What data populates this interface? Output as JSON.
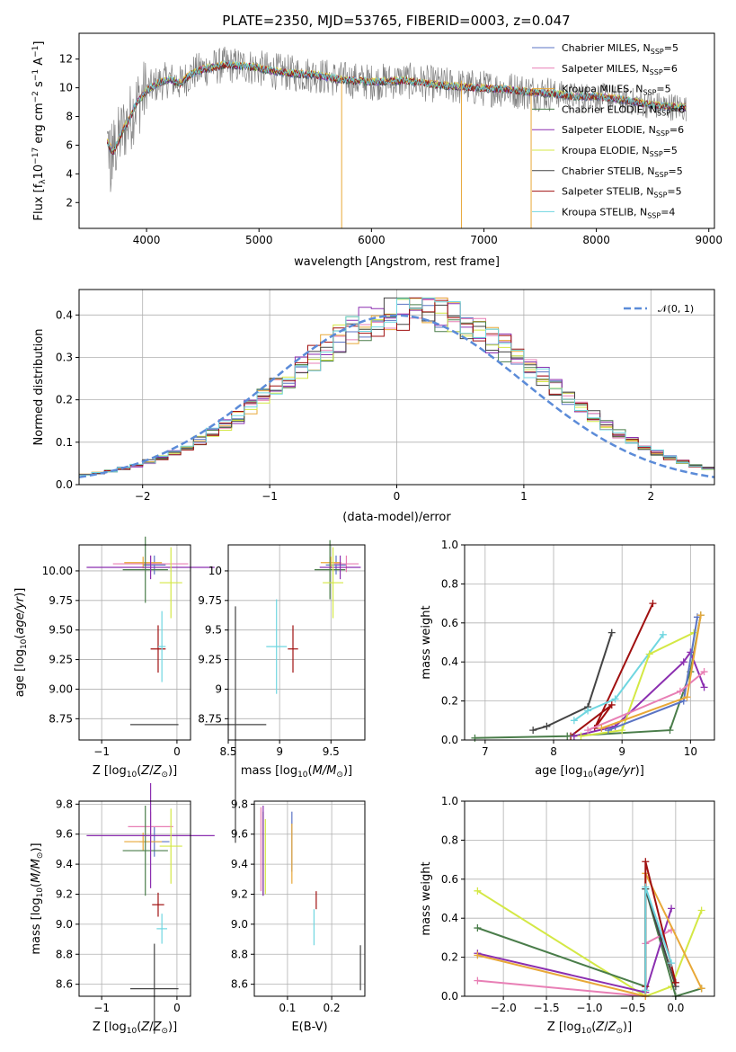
{
  "title": "PLATE=2350, MJD=53765, FIBERID=0003, z=0.047",
  "colors": {
    "Chabrier MILES": "#5b74c4",
    "Salpeter MILES": "#e87fb5",
    "Kroupa MILES": "#e8a838",
    "Chabrier ELODIE": "#4a7d4a",
    "Salpeter ELODIE": "#8b2fb0",
    "Kroupa ELODIE": "#d4e845",
    "Chabrier STELIB": "#444444",
    "Salpeter STELIB": "#a01010",
    "Kroupa STELIB": "#6fd6e0",
    "data": "#808080",
    "normal": "#5b8bd8"
  },
  "chart_data": [
    {
      "id": "spectrum",
      "type": "line",
      "xlabel": "wavelength [Angstrom, rest frame]",
      "ylabel": "Flux [f_λ 10^-17 erg cm^-2 s^-1 A^-1]",
      "xlim": [
        3400,
        9050
      ],
      "ylim": [
        0.2,
        13.8
      ],
      "xticks": [
        4000,
        5000,
        6000,
        7000,
        8000,
        9000
      ],
      "yticks": [
        2,
        4,
        6,
        8,
        10,
        12
      ],
      "grid": false,
      "legend_position": "right",
      "legend": [
        {
          "name": "Chabrier MILES",
          "nssp": "5"
        },
        {
          "name": "Salpeter MILES",
          "nssp": "6"
        },
        {
          "name": "Kroupa MILES",
          "nssp": "5"
        },
        {
          "name": "Chabrier ELODIE",
          "nssp": "6"
        },
        {
          "name": "Salpeter ELODIE",
          "nssp": "6"
        },
        {
          "name": "Kroupa ELODIE",
          "nssp": "5"
        },
        {
          "name": "Chabrier STELIB",
          "nssp": "5"
        },
        {
          "name": "Salpeter STELIB",
          "nssp": "5"
        },
        {
          "name": "Kroupa STELIB",
          "nssp": "4"
        }
      ],
      "continuum": {
        "x": [
          3650,
          3700,
          3750,
          3800,
          3850,
          3900,
          4000,
          4100,
          4200,
          4300,
          4400,
          4500,
          4700,
          4900,
          5100,
          5300,
          5500,
          5700,
          6000,
          6300,
          6600,
          6900,
          7200,
          7400,
          7600,
          7800,
          8000,
          8200,
          8500,
          8800
        ],
        "y": [
          6.2,
          5.5,
          6.3,
          7.2,
          7.8,
          8.8,
          9.8,
          10.3,
          10.6,
          10.3,
          11.0,
          11.3,
          11.6,
          11.5,
          11.2,
          11.0,
          10.9,
          10.6,
          10.4,
          10.5,
          10.2,
          10.0,
          9.9,
          9.7,
          9.6,
          9.4,
          9.4,
          9.2,
          8.8,
          8.6
        ]
      },
      "drop_lines": [
        {
          "name": "Kroupa MILES",
          "x": 5735,
          "top": 10.8
        },
        {
          "name": "Kroupa MILES",
          "x": 6800,
          "top": 10.5
        },
        {
          "name": "Kroupa MILES",
          "x": 7420,
          "top": 9.8
        }
      ]
    },
    {
      "id": "residuals",
      "type": "histogram",
      "xlabel": "(data-model)/error",
      "ylabel": "Normed distribution",
      "xlim": [
        -2.5,
        2.5
      ],
      "ylim": [
        0,
        0.46
      ],
      "xticks": [
        -2,
        -1,
        0,
        1,
        2
      ],
      "yticks": [
        0.0,
        0.1,
        0.2,
        0.3,
        0.4
      ],
      "grid": true,
      "bin_width": 0.1,
      "legend_position": "top-right",
      "legend": [
        "𝒩(0, 1)"
      ]
    },
    {
      "id": "age_vs_Z",
      "type": "errorbar",
      "xlabel": "Z [log10(Z/Z⊙)]",
      "ylabel": "age [log10(age/yr)]",
      "xlim": [
        -1.3,
        0.18
      ],
      "ylim": [
        8.57,
        10.22
      ],
      "xticks": [
        -1,
        0
      ],
      "yticks": [
        8.75,
        9.0,
        9.25,
        9.5,
        9.75,
        10.0
      ],
      "grid": true,
      "points": [
        {
          "model": "Chabrier MILES",
          "x": -0.3,
          "y": 10.05,
          "xerr": 0.15,
          "yerr": 0.08
        },
        {
          "model": "Salpeter MILES",
          "x": -0.35,
          "y": 10.06,
          "xerr": 0.5,
          "yerr": 0.07
        },
        {
          "model": "Kroupa MILES",
          "x": -0.45,
          "y": 10.07,
          "xerr": 0.25,
          "yerr": 0.05
        },
        {
          "model": "Chabrier ELODIE",
          "x": -0.42,
          "y": 10.01,
          "xerr": 0.3,
          "yerr": 0.28
        },
        {
          "model": "Salpeter ELODIE",
          "x": -0.35,
          "y": 10.03,
          "xerr": 0.85,
          "yerr": 0.1
        },
        {
          "model": "Kroupa ELODIE",
          "x": -0.08,
          "y": 9.9,
          "xerr": 0.15,
          "yerr": 0.3
        },
        {
          "model": "Chabrier STELIB",
          "x": -0.3,
          "y": 8.7,
          "xerr": 0.32,
          "yerr": 0.0
        },
        {
          "model": "Salpeter STELIB",
          "x": -0.25,
          "y": 9.34,
          "xerr": 0.1,
          "yerr": 0.2
        },
        {
          "model": "Kroupa STELIB",
          "x": -0.2,
          "y": 9.36,
          "xerr": 0.05,
          "yerr": 0.3
        }
      ]
    },
    {
      "id": "age_vs_mass",
      "type": "errorbar",
      "xlabel": "mass [log10(M/M⊙)]",
      "ylabel": "",
      "xlim": [
        8.5,
        9.83
      ],
      "ylim": [
        8.57,
        10.22
      ],
      "xticks": [
        8.5,
        9.0,
        9.5
      ],
      "yticks": [
        8.75,
        9.0,
        9.25,
        9.5,
        9.75,
        10.0
      ],
      "grid": true,
      "points": [
        {
          "model": "Chabrier MILES",
          "x": 9.55,
          "y": 10.05,
          "xerr": 0.1,
          "yerr": 0.08
        },
        {
          "model": "Salpeter MILES",
          "x": 9.65,
          "y": 10.06,
          "xerr": 0.12,
          "yerr": 0.07
        },
        {
          "model": "Kroupa MILES",
          "x": 9.5,
          "y": 10.07,
          "xerr": 0.1,
          "yerr": 0.05
        },
        {
          "model": "Chabrier ELODIE",
          "x": 9.49,
          "y": 10.01,
          "xerr": 0.15,
          "yerr": 0.25
        },
        {
          "model": "Salpeter ELODIE",
          "x": 9.59,
          "y": 10.03,
          "xerr": 0.2,
          "yerr": 0.1
        },
        {
          "model": "Kroupa ELODIE",
          "x": 9.52,
          "y": 9.9,
          "xerr": 0.1,
          "yerr": 0.3
        },
        {
          "model": "Chabrier STELIB",
          "x": 8.57,
          "y": 8.7,
          "xerr": 0.3,
          "yerr": 1.0
        },
        {
          "model": "Salpeter STELIB",
          "x": 9.13,
          "y": 9.34,
          "xerr": 0.05,
          "yerr": 0.2
        },
        {
          "model": "Kroupa STELIB",
          "x": 8.97,
          "y": 9.36,
          "xerr": 0.1,
          "yerr": 0.4
        }
      ]
    },
    {
      "id": "weight_vs_age",
      "type": "line",
      "xlabel": "age [log10(age/yr)]",
      "ylabel": "mass weight",
      "xlim": [
        6.7,
        10.35
      ],
      "ylim": [
        0,
        1.0
      ],
      "xticks": [
        7,
        8,
        9,
        10
      ],
      "yticks": [
        0.0,
        0.2,
        0.4,
        0.6,
        0.8,
        1.0
      ],
      "grid": true,
      "series": [
        {
          "model": "Chabrier STELIB",
          "x": [
            7.7,
            7.9,
            8.5,
            8.85
          ],
          "y": [
            0.05,
            0.07,
            0.17,
            0.55
          ]
        },
        {
          "model": "Salpeter STELIB",
          "x": [
            8.25,
            8.85,
            8.6,
            9.45
          ],
          "y": [
            0.02,
            0.18,
            0.06,
            0.7
          ]
        },
        {
          "model": "Kroupa STELIB",
          "x": [
            8.3,
            8.5,
            8.9,
            9.6
          ],
          "y": [
            0.1,
            0.15,
            0.21,
            0.54
          ]
        },
        {
          "model": "Chabrier ELODIE",
          "x": [
            6.85,
            8.2,
            9.7,
            10.0,
            10.15
          ],
          "y": [
            0.01,
            0.02,
            0.05,
            0.35,
            0.64
          ]
        },
        {
          "model": "Salpeter ELODIE",
          "x": [
            8.3,
            8.9,
            9.9,
            10.0,
            10.2
          ],
          "y": [
            0.02,
            0.07,
            0.4,
            0.45,
            0.27
          ]
        },
        {
          "model": "Kroupa ELODIE",
          "x": [
            8.4,
            9.0,
            9.4,
            10.05
          ],
          "y": [
            0.02,
            0.05,
            0.44,
            0.55
          ]
        },
        {
          "model": "Chabrier MILES",
          "x": [
            8.8,
            9.9,
            10.1
          ],
          "y": [
            0.05,
            0.2,
            0.63
          ]
        },
        {
          "model": "Salpeter MILES",
          "x": [
            8.5,
            9.85,
            10.2
          ],
          "y": [
            0.05,
            0.25,
            0.35
          ]
        },
        {
          "model": "Kroupa MILES",
          "x": [
            8.7,
            9.95,
            10.15
          ],
          "y": [
            0.06,
            0.22,
            0.64
          ]
        }
      ]
    },
    {
      "id": "mass_vs_Z",
      "type": "errorbar",
      "xlabel": "Z [log10(Z/Z⊙)]",
      "ylabel": "mass [log10(M/M⊙)]",
      "xlim": [
        -1.3,
        0.18
      ],
      "ylim": [
        8.52,
        9.82
      ],
      "xticks": [
        -1,
        0
      ],
      "yticks": [
        8.6,
        8.8,
        9.0,
        9.2,
        9.4,
        9.6,
        9.8
      ],
      "grid": true,
      "points": [
        {
          "model": "Chabrier MILES",
          "x": -0.3,
          "y": 9.55,
          "xerr": 0.2,
          "yerr": 0.1
        },
        {
          "model": "Salpeter MILES",
          "x": -0.35,
          "y": 9.65,
          "xerr": 0.3,
          "yerr": 0.1
        },
        {
          "model": "Kroupa MILES",
          "x": -0.45,
          "y": 9.55,
          "xerr": 0.25,
          "yerr": 0.06
        },
        {
          "model": "Chabrier ELODIE",
          "x": -0.42,
          "y": 9.49,
          "xerr": 0.3,
          "yerr": 0.3
        },
        {
          "model": "Salpeter ELODIE",
          "x": -0.35,
          "y": 9.59,
          "xerr": 0.85,
          "yerr": 0.35
        },
        {
          "model": "Kroupa ELODIE",
          "x": -0.08,
          "y": 9.52,
          "xerr": 0.15,
          "yerr": 0.25
        },
        {
          "model": "Chabrier STELIB",
          "x": -0.3,
          "y": 8.57,
          "xerr": 0.32,
          "yerr": 0.3
        },
        {
          "model": "Salpeter STELIB",
          "x": -0.25,
          "y": 9.13,
          "xerr": 0.08,
          "yerr": 0.08
        },
        {
          "model": "Kroupa STELIB",
          "x": -0.2,
          "y": 8.97,
          "xerr": 0.07,
          "yerr": 0.1
        }
      ]
    },
    {
      "id": "mass_vs_ebv",
      "type": "errorbar",
      "xlabel": "E(B-V)",
      "ylabel": "",
      "xlim": [
        0.025,
        0.275
      ],
      "ylim": [
        8.52,
        9.82
      ],
      "xticks": [
        0.1,
        0.2
      ],
      "yticks": [
        8.6,
        8.8,
        9.0,
        9.2,
        9.4,
        9.6,
        9.8
      ],
      "grid": true,
      "points": [
        {
          "model": "Chabrier MILES",
          "x": 0.11,
          "y": 9.55,
          "xerr": 0,
          "yerr": 0.2
        },
        {
          "model": "Salpeter MILES",
          "x": 0.04,
          "y": 9.5,
          "xerr": 0,
          "yerr": 0.28
        },
        {
          "model": "Kroupa MILES",
          "x": 0.11,
          "y": 9.47,
          "xerr": 0,
          "yerr": 0.2
        },
        {
          "model": "Chabrier ELODIE",
          "x": 0.045,
          "y": 9.47,
          "xerr": 0,
          "yerr": 0.28
        },
        {
          "model": "Salpeter ELODIE",
          "x": 0.045,
          "y": 9.49,
          "xerr": 0,
          "yerr": 0.3
        },
        {
          "model": "Kroupa ELODIE",
          "x": 0.05,
          "y": 9.45,
          "xerr": 0,
          "yerr": 0.25
        },
        {
          "model": "Chabrier STELIB",
          "x": 0.265,
          "y": 8.71,
          "xerr": 0,
          "yerr": 0.15
        },
        {
          "model": "Salpeter STELIB",
          "x": 0.165,
          "y": 9.16,
          "xerr": 0,
          "yerr": 0.06
        },
        {
          "model": "Kroupa STELIB",
          "x": 0.16,
          "y": 8.98,
          "xerr": 0,
          "yerr": 0.12
        }
      ]
    },
    {
      "id": "weight_vs_Z",
      "type": "line",
      "xlabel": "Z [log10(Z/Z⊙)]",
      "ylabel": "mass weight",
      "xlim": [
        -2.45,
        0.45
      ],
      "ylim": [
        0,
        1.0
      ],
      "xticks": [
        -2.0,
        -1.5,
        -1.0,
        -0.5,
        0.0
      ],
      "yticks": [
        0.0,
        0.2,
        0.4,
        0.6,
        0.8,
        1.0
      ],
      "grid": true,
      "series": [
        {
          "model": "Kroupa ELODIE",
          "x": [
            -2.3,
            -0.35,
            -0.05,
            0.3
          ],
          "y": [
            0.54,
            0.0,
            0.05,
            0.44
          ]
        },
        {
          "model": "Chabrier ELODIE",
          "x": [
            -2.3,
            -0.35,
            -0.35,
            0.0,
            0.3
          ],
          "y": [
            0.35,
            0.05,
            0.55,
            0.0,
            0.04
          ]
        },
        {
          "model": "Salpeter ELODIE",
          "x": [
            -2.3,
            -0.35,
            -0.05
          ],
          "y": [
            0.22,
            0.02,
            0.45
          ]
        },
        {
          "model": "Salpeter MILES",
          "x": [
            -2.3,
            -0.35,
            -0.35,
            -0.05
          ],
          "y": [
            0.08,
            0.0,
            0.27,
            0.34
          ]
        },
        {
          "model": "Kroupa MILES",
          "x": [
            -2.3,
            -0.35,
            -0.35,
            0.3
          ],
          "y": [
            0.21,
            0.0,
            0.63,
            0.04
          ]
        },
        {
          "model": "Chabrier STELIB",
          "x": [
            -0.35,
            -0.35,
            0.0
          ],
          "y": [
            0.03,
            0.55,
            0.05
          ]
        },
        {
          "model": "Salpeter STELIB",
          "x": [
            -0.35,
            -0.35,
            0.0
          ],
          "y": [
            0.05,
            0.69,
            0.07
          ]
        },
        {
          "model": "Kroupa STELIB",
          "x": [
            -0.35,
            -0.35,
            -0.05
          ],
          "y": [
            0.03,
            0.56,
            0.17
          ]
        }
      ]
    }
  ]
}
